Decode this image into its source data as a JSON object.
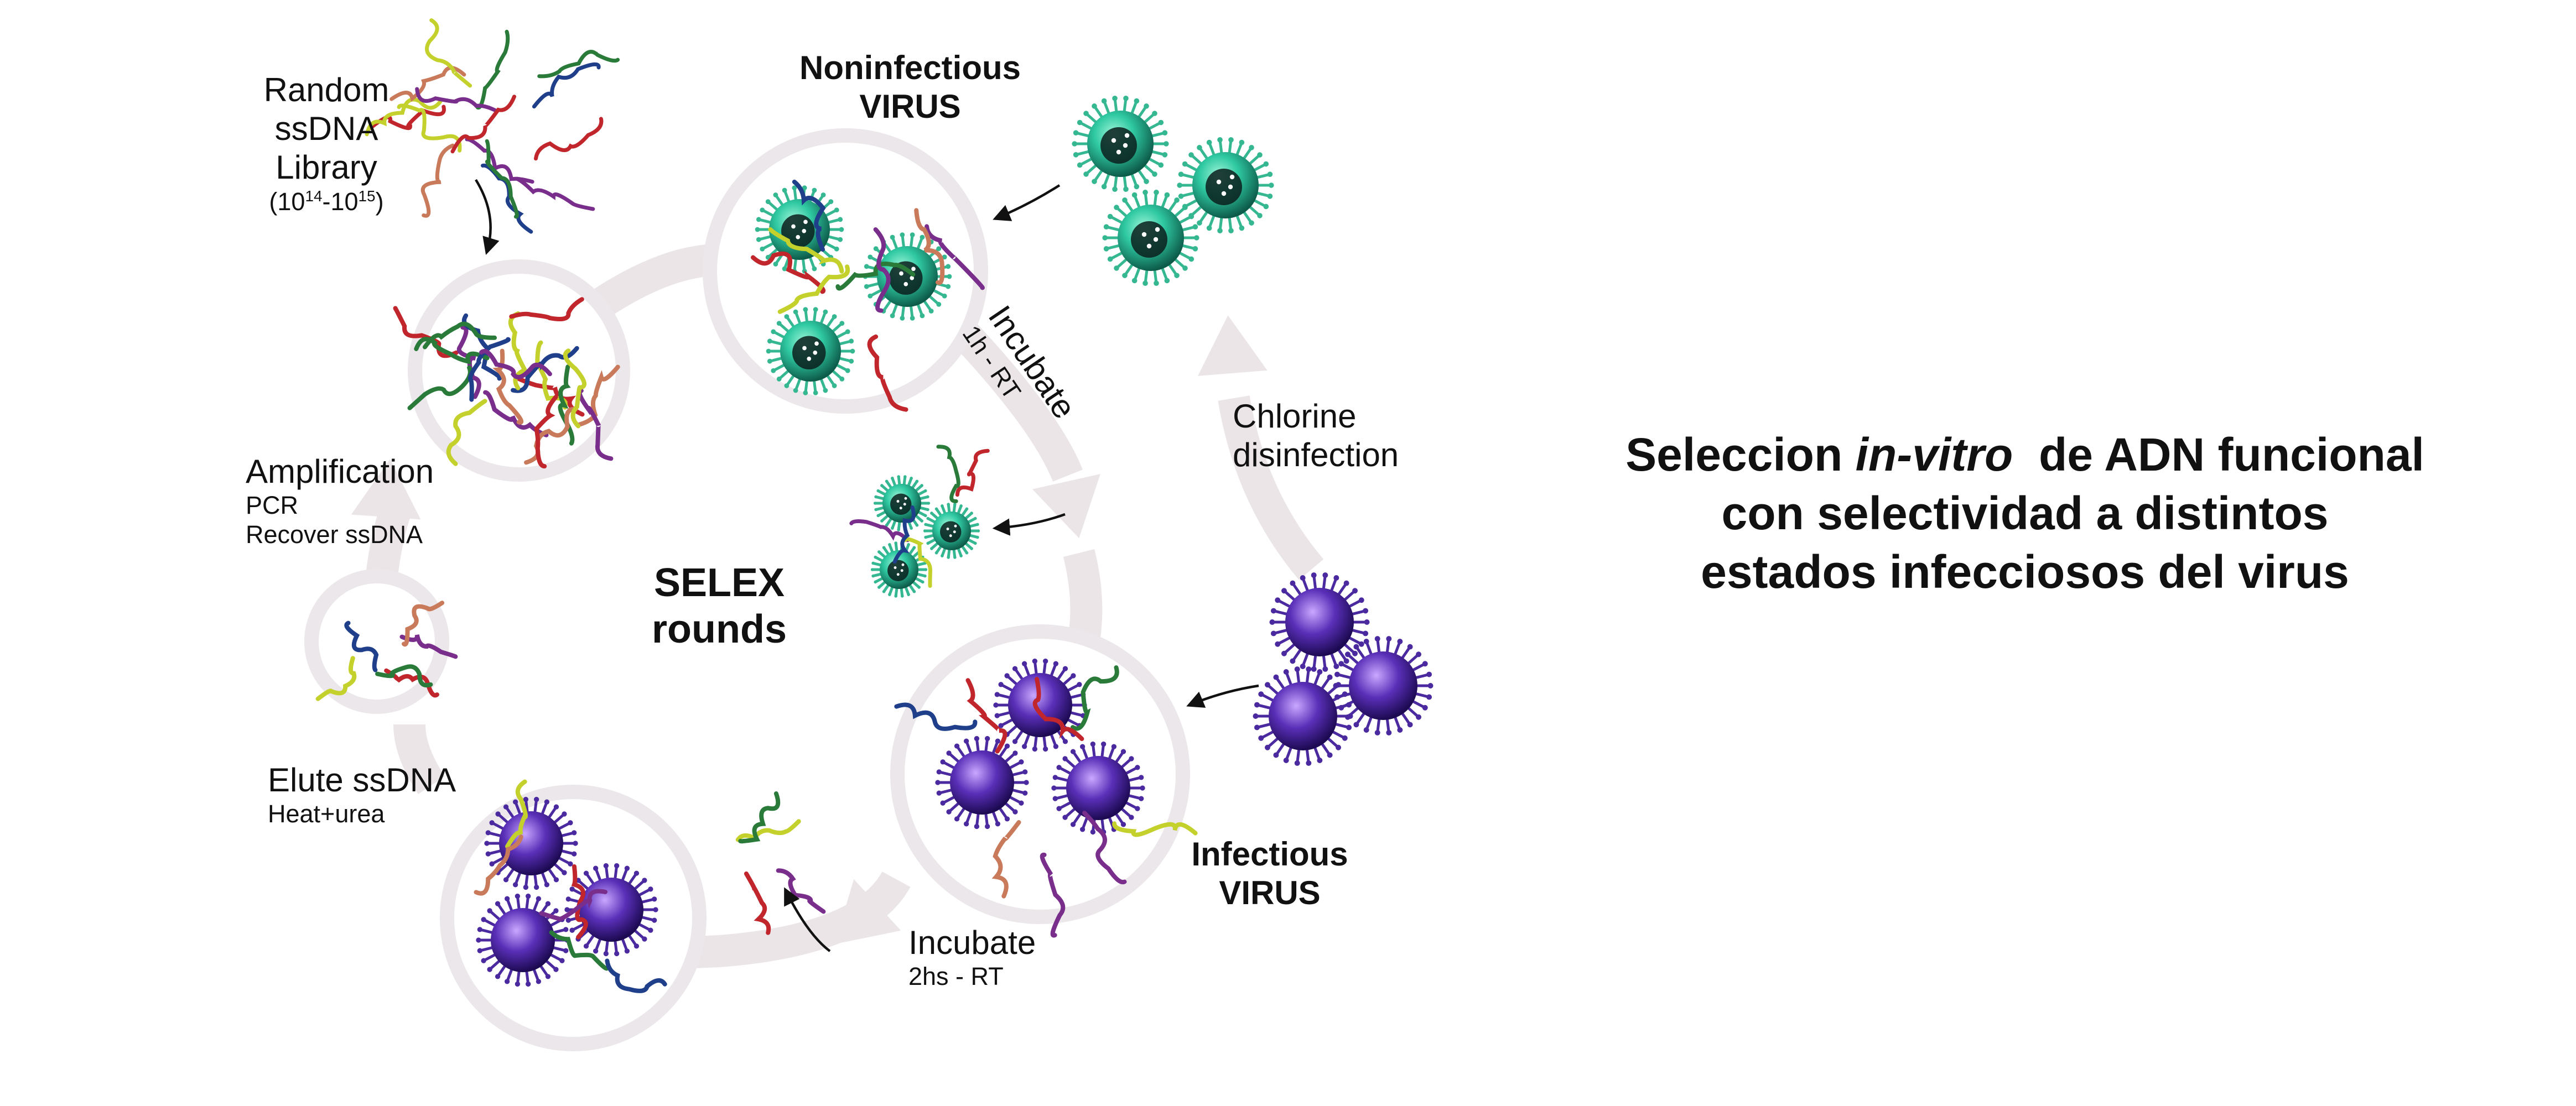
{
  "labels": {
    "library": {
      "line1": "Random",
      "line2": "ssDNA",
      "line3": "Library",
      "range_open": "(10",
      "exp1": "14",
      "range_mid": "-10",
      "exp2": "15",
      "range_close": ")"
    },
    "noninfectious": {
      "line1": "Noninfectious",
      "line2": "VIRUS"
    },
    "incubate_1h": {
      "title": "Incubate",
      "detail": "1h - RT"
    },
    "chlorine": {
      "line1": "Chlorine",
      "line2": "disinfection"
    },
    "amplification": {
      "title": "Amplification",
      "detail1": "PCR",
      "detail2": "Recover ssDNA"
    },
    "selex": {
      "line1": "SELEX",
      "line2": "rounds"
    },
    "elute": {
      "title": "Elute ssDNA",
      "detail": "Heat+urea"
    },
    "infectious": {
      "line1": "Infectious",
      "line2": "VIRUS"
    },
    "incubate_2h": {
      "title": "Incubate",
      "detail": "2hs - RT"
    }
  },
  "title": {
    "part1": "Seleccion ",
    "italic": "in-vitro",
    "part2": "  de ADN funcional",
    "line2": "con selectividad a distintos",
    "line3": "estados infecciosos del virus"
  },
  "colors": {
    "cycle_arrow": "#ebe5e8",
    "circle_ring": "#ebe7ea",
    "noninfectious_virus": "#2fc9a2",
    "infectious_virus": "#5a2fb8",
    "dna_strands": [
      "#c0262b",
      "#7a2e8c",
      "#c4d12c",
      "#2a7a3a",
      "#1f3f8a",
      "#c87a5a"
    ]
  }
}
